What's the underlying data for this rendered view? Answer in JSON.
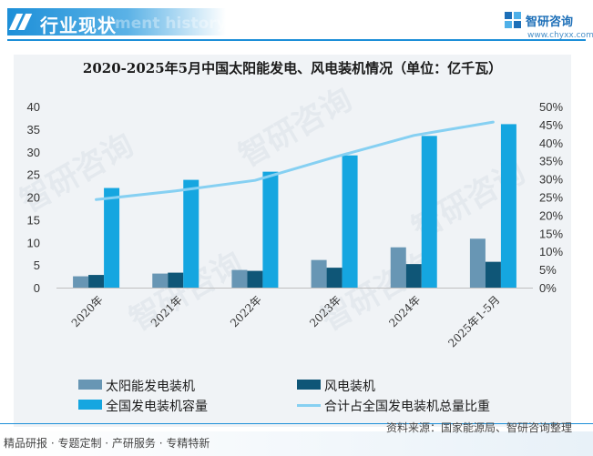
{
  "header": {
    "title": "行业现状",
    "watermark_text": "ment history"
  },
  "logo": {
    "name": "智研咨询",
    "url": "www.chyxx.com"
  },
  "watermark": "智研咨询",
  "colors": {
    "solar": "#6896b4",
    "wind": "#0f5677",
    "capacity": "#15a6e0",
    "ratio_line": "#86d0f2",
    "brand": "#1d8fd8"
  },
  "chart_data": {
    "type": "bar",
    "title": "2020-2025年5月中国太阳能发电、风电装机情况（单位：亿千瓦）",
    "categories": [
      "2020年",
      "2021年",
      "2022年",
      "2023年",
      "2024年",
      "2025年1-5月"
    ],
    "series": [
      {
        "name": "太阳能发电装机",
        "type": "bar",
        "axis": "left",
        "values": [
          2.5,
          3.1,
          3.9,
          6.1,
          8.9,
          10.8
        ]
      },
      {
        "name": "风电装机",
        "type": "bar",
        "axis": "left",
        "values": [
          2.8,
          3.3,
          3.7,
          4.4,
          5.2,
          5.7
        ]
      },
      {
        "name": "全国发电装机容量",
        "type": "bar",
        "axis": "left",
        "values": [
          22.0,
          23.8,
          25.6,
          29.2,
          33.5,
          36.1
        ]
      },
      {
        "name": "合计占全国发电装机总量比重",
        "type": "line",
        "axis": "right",
        "values": [
          24.3,
          26.7,
          29.6,
          36.0,
          42.0,
          45.7
        ]
      }
    ],
    "ylim": [
      0,
      40
    ],
    "y_ticks": [
      "0",
      "5",
      "10",
      "15",
      "20",
      "25",
      "30",
      "35",
      "40"
    ],
    "y2lim": [
      0,
      50
    ],
    "y2_ticks": [
      "0%",
      "5%",
      "10%",
      "15%",
      "20%",
      "25%",
      "30%",
      "35%",
      "40%",
      "45%",
      "50%"
    ],
    "legend_position": "bottom",
    "grid": false
  },
  "footer": {
    "tags": "精品研报 · 专题定制 · 产研服务 · 专精特新",
    "source": "资料来源：国家能源局、智研咨询整理"
  }
}
